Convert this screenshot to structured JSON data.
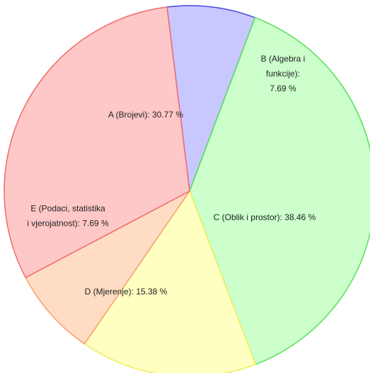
{
  "chart_data": {
    "type": "pie",
    "start_angle_deg": 353,
    "direction": "clockwise",
    "slices": [
      {
        "name": "B",
        "label_lines": [
          "B (Algebra i",
          "funkcije):",
          "7.69 %"
        ],
        "value": 7.69,
        "fill": "#c8c8ff",
        "stroke": "#5050e0"
      },
      {
        "name": "C",
        "label_lines": [
          "C (Oblik i prostor):  38.46 %"
        ],
        "value": 38.46,
        "fill": "#ccffcc",
        "stroke": "#5fe05f"
      },
      {
        "name": "D",
        "label_lines": [
          "D (Mjerenje):  15.38 %"
        ],
        "value": 15.38,
        "fill": "#ffffc2",
        "stroke": "#f0ee60"
      },
      {
        "name": "E",
        "label_lines": [
          "E (Podaci, statistika",
          "i vjerojatnost): 7.69 %"
        ],
        "value": 7.69,
        "fill": "#ffdcc4",
        "stroke": "#f7a472"
      },
      {
        "name": "A",
        "label_lines": [
          "A (Brojevi): 30.77 %"
        ],
        "value": 30.77,
        "fill": "#ffc8c8",
        "stroke": "#f07070"
      }
    ]
  }
}
